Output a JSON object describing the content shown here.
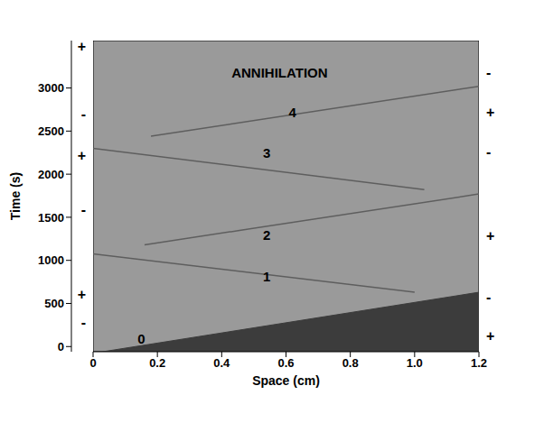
{
  "chart_data": {
    "type": "line",
    "x_label": "Space (cm)",
    "y_label": "Time (s)",
    "xlim": [
      0,
      1.2
    ],
    "xticks": [
      0,
      0.2,
      0.4,
      0.6,
      0.8,
      {
        "value": 1,
        "label": "1.0"
      },
      1.2
    ],
    "ylim": [
      -60,
      3550
    ],
    "yticks": [
      0,
      500,
      1000,
      1500,
      2000,
      2500,
      3000
    ],
    "grid": false,
    "series": [
      {
        "type": "area",
        "color": "#3c3c3c",
        "x": [
          0.03,
          1.2
        ],
        "values": [
          -60,
          630
        ]
      },
      {
        "type": "line",
        "color": "#5e5e5e",
        "x": [
          0,
          1.0
        ],
        "values": [
          1075,
          630
        ]
      },
      {
        "type": "line",
        "color": "#5e5e5e",
        "x": [
          0.16,
          1.2
        ],
        "values": [
          1180,
          1770
        ]
      },
      {
        "type": "line",
        "color": "#5e5e5e",
        "x": [
          0,
          1.03
        ],
        "values": [
          2300,
          1820
        ]
      },
      {
        "type": "line",
        "color": "#5e5e5e",
        "x": [
          0.18,
          1.2
        ],
        "values": [
          2440,
          3020
        ]
      }
    ],
    "annotations": [
      {
        "text": "ANNIHILATION",
        "x": 0.58,
        "y": 3180
      },
      {
        "text": "4",
        "x": 0.62,
        "y": 2720
      },
      {
        "text": "3",
        "x": 0.54,
        "y": 2245
      },
      {
        "text": "2",
        "x": 0.54,
        "y": 1290
      },
      {
        "text": "1",
        "x": 0.54,
        "y": 810
      },
      {
        "text": "0",
        "x": 0.15,
        "y": 95
      }
    ],
    "left_marks": [
      {
        "y": 3480,
        "label": "+"
      },
      {
        "y": 2700,
        "label": "-"
      },
      {
        "y": 2220,
        "label": "+"
      },
      {
        "y": 1585,
        "label": "-"
      },
      {
        "y": 606,
        "label": "+"
      },
      {
        "y": 280,
        "label": "-"
      }
    ],
    "right_marks": [
      {
        "y": 3180,
        "label": "-"
      },
      {
        "y": 2720,
        "label": "+"
      },
      {
        "y": 2255,
        "label": "-"
      },
      {
        "y": 1290,
        "label": "+"
      },
      {
        "y": 575,
        "label": "-"
      },
      {
        "y": 130,
        "label": "+"
      }
    ]
  }
}
